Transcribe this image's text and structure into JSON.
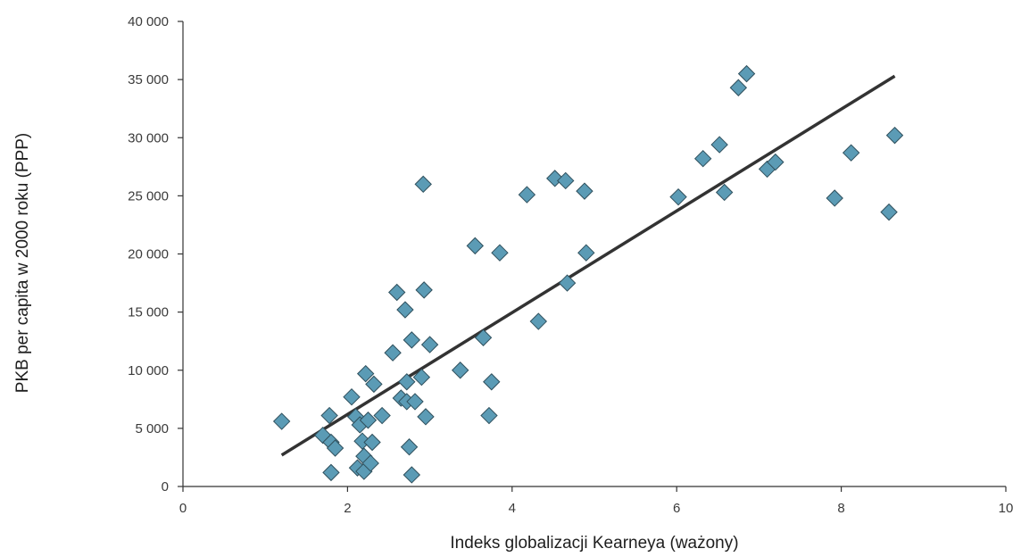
{
  "chart_data": {
    "type": "scatter",
    "title": "",
    "xlabel": "Indeks globalizacji Kearneya (ważony)",
    "ylabel": "PKB per capita w 2000 roku (PPP)",
    "xlim": [
      0,
      10
    ],
    "ylim": [
      0,
      40000
    ],
    "x_ticks": [
      0,
      2,
      4,
      6,
      8,
      10
    ],
    "x_tick_labels": [
      "0",
      "2",
      "4",
      "6",
      "8",
      "10"
    ],
    "y_ticks": [
      0,
      5000,
      10000,
      15000,
      20000,
      25000,
      30000,
      35000,
      40000
    ],
    "y_tick_labels": [
      "0",
      "5 000",
      "10 000",
      "15 000",
      "20 000",
      "25 000",
      "30 000",
      "35 000",
      "40 000"
    ],
    "grid": false,
    "legend": "none",
    "marker": "diamond",
    "colors": {
      "marker_fill": "#5b9bb5",
      "marker_stroke": "#2f4f5c",
      "trend_line": "#333333",
      "axis": "#333333"
    },
    "series": [
      {
        "points": [
          [
            1.2,
            5600
          ],
          [
            1.7,
            4400
          ],
          [
            1.78,
            6100
          ],
          [
            1.8,
            3800
          ],
          [
            1.8,
            1200
          ],
          [
            1.85,
            3300
          ],
          [
            2.05,
            7700
          ],
          [
            2.1,
            6000
          ],
          [
            2.12,
            1600
          ],
          [
            2.15,
            5300
          ],
          [
            2.18,
            3900
          ],
          [
            2.2,
            2600
          ],
          [
            2.2,
            1300
          ],
          [
            2.22,
            9700
          ],
          [
            2.25,
            5700
          ],
          [
            2.28,
            2000
          ],
          [
            2.3,
            3800
          ],
          [
            2.32,
            8800
          ],
          [
            2.42,
            6100
          ],
          [
            2.55,
            11500
          ],
          [
            2.6,
            16700
          ],
          [
            2.65,
            7600
          ],
          [
            2.7,
            15200
          ],
          [
            2.72,
            7300
          ],
          [
            2.72,
            9000
          ],
          [
            2.75,
            3400
          ],
          [
            2.78,
            12600
          ],
          [
            2.78,
            1000
          ],
          [
            2.82,
            7300
          ],
          [
            2.9,
            9400
          ],
          [
            2.92,
            26000
          ],
          [
            2.93,
            16900
          ],
          [
            2.95,
            6000
          ],
          [
            3.0,
            12200
          ],
          [
            3.37,
            10000
          ],
          [
            3.55,
            20700
          ],
          [
            3.65,
            12800
          ],
          [
            3.72,
            6100
          ],
          [
            3.75,
            9000
          ],
          [
            3.85,
            20100
          ],
          [
            4.18,
            25100
          ],
          [
            4.32,
            14200
          ],
          [
            4.52,
            26500
          ],
          [
            4.65,
            26300
          ],
          [
            4.67,
            17500
          ],
          [
            4.88,
            25400
          ],
          [
            4.9,
            20100
          ],
          [
            6.02,
            24900
          ],
          [
            6.32,
            28200
          ],
          [
            6.52,
            29400
          ],
          [
            6.58,
            25300
          ],
          [
            6.75,
            34300
          ],
          [
            6.85,
            35500
          ],
          [
            7.1,
            27300
          ],
          [
            7.2,
            27900
          ],
          [
            7.92,
            24800
          ],
          [
            8.12,
            28700
          ],
          [
            8.58,
            23600
          ],
          [
            8.65,
            30200
          ]
        ]
      }
    ],
    "trend_line": {
      "x": [
        1.2,
        8.65
      ],
      "y": [
        2700,
        35300
      ]
    }
  }
}
